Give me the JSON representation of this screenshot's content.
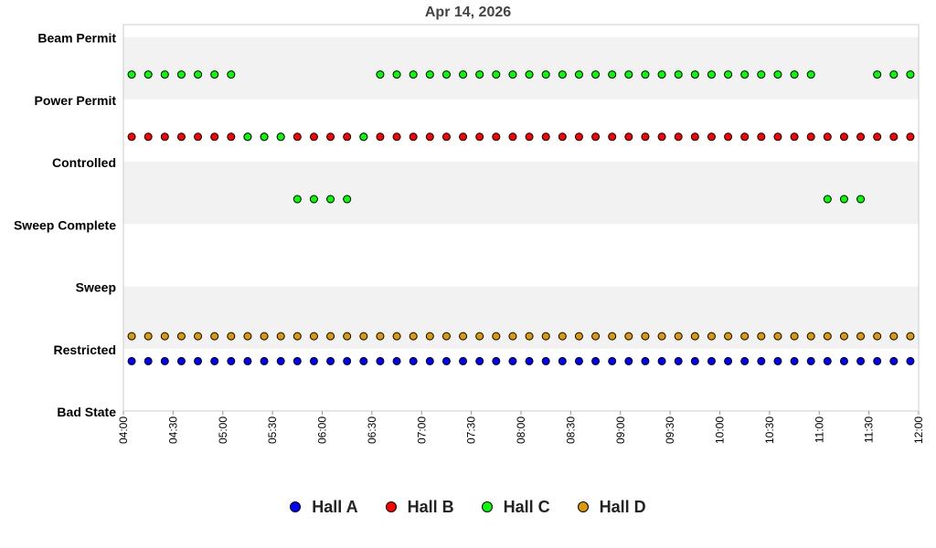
{
  "chart_data": {
    "type": "scatter",
    "title": "Apr 14, 2026",
    "xlabel": "",
    "ylabel": "",
    "y_categories": [
      "Bad State",
      "Restricted",
      "Sweep",
      "Sweep Complete",
      "Controlled",
      "Power Permit",
      "Beam Permit"
    ],
    "x_tick_labels": [
      "04:00",
      "04:30",
      "05:00",
      "05:30",
      "06:00",
      "06:30",
      "07:00",
      "07:30",
      "08:00",
      "08:30",
      "09:00",
      "09:30",
      "10:00",
      "10:30",
      "11:00",
      "11:30",
      "12:00"
    ],
    "x_range": [
      "04:00",
      "12:00"
    ],
    "sample_interval_minutes": 10,
    "legend_position": "bottom",
    "series": [
      {
        "name": "Hall A",
        "color": "#0000ff",
        "offset": -0.2,
        "points": [
          {
            "from": "04:05",
            "to": "11:55",
            "state": "Restricted"
          }
        ]
      },
      {
        "name": "Hall B",
        "color": "#ff0000",
        "offset": 0.4,
        "points": [
          {
            "from": "04:05",
            "to": "10:55",
            "state": "Controlled"
          },
          {
            "from": "11:05",
            "to": "11:25",
            "state": "Controlled"
          },
          {
            "from": "11:35",
            "to": "11:55",
            "state": "Controlled"
          }
        ]
      },
      {
        "name": "Hall C",
        "color": "#00ff00",
        "offset": 0.4,
        "points": [
          {
            "from": "04:05",
            "to": "05:05",
            "state": "Power Permit"
          },
          {
            "from": "05:15",
            "to": "05:35",
            "state": "Controlled"
          },
          {
            "from": "05:45",
            "to": "06:15",
            "state": "Sweep Complete"
          },
          {
            "from": "06:25",
            "to": "06:25",
            "state": "Controlled"
          },
          {
            "from": "06:35",
            "to": "10:55",
            "state": "Power Permit"
          },
          {
            "from": "11:05",
            "to": "11:25",
            "state": "Sweep Complete"
          },
          {
            "from": "11:35",
            "to": "11:55",
            "state": "Power Permit"
          }
        ]
      },
      {
        "name": "Hall D",
        "color": "#dd9900",
        "offset": 0.2,
        "points": [
          {
            "from": "04:05",
            "to": "11:55",
            "state": "Restricted"
          }
        ]
      }
    ]
  }
}
